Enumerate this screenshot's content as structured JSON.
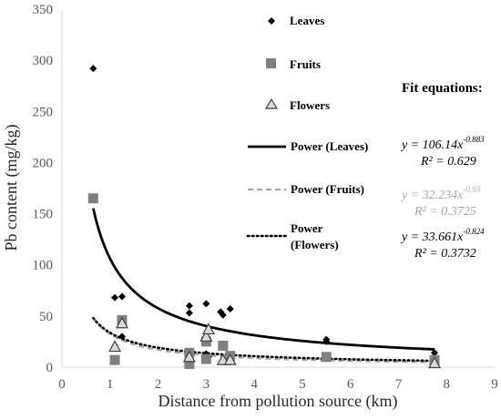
{
  "chart_data": {
    "type": "scatter",
    "xlabel": "Distance from pollution source (km)",
    "ylabel": "Pb content (mg/kg)",
    "xlim": [
      0,
      9
    ],
    "ylim": [
      0,
      350
    ],
    "x_ticks": [
      "0",
      "1",
      "2",
      "3",
      "4",
      "5",
      "6",
      "7",
      "8",
      "9"
    ],
    "y_ticks": [
      "0",
      "50",
      "100",
      "150",
      "200",
      "250",
      "300",
      "350"
    ],
    "grid": false,
    "legend_position": "right",
    "series": [
      {
        "name": "Leaves",
        "marker": "diamond",
        "color": "#000000",
        "points": [
          [
            0.65,
            292
          ],
          [
            1.1,
            68
          ],
          [
            1.25,
            69
          ],
          [
            1.25,
            30
          ],
          [
            2.65,
            60
          ],
          [
            2.65,
            53
          ],
          [
            3.0,
            62
          ],
          [
            3.0,
            13
          ],
          [
            3.05,
            10
          ],
          [
            3.3,
            54
          ],
          [
            3.35,
            51
          ],
          [
            3.5,
            57
          ],
          [
            5.5,
            27
          ],
          [
            5.5,
            25
          ],
          [
            7.75,
            14
          ]
        ]
      },
      {
        "name": "Fruits",
        "marker": "square",
        "color": "#808080",
        "points": [
          [
            0.65,
            165
          ],
          [
            1.1,
            7
          ],
          [
            1.25,
            46
          ],
          [
            2.65,
            3
          ],
          [
            2.65,
            14
          ],
          [
            3.0,
            8
          ],
          [
            3.0,
            25
          ],
          [
            3.35,
            21
          ],
          [
            3.5,
            11
          ],
          [
            5.5,
            10
          ],
          [
            7.75,
            7
          ]
        ]
      },
      {
        "name": "Flowers",
        "marker": "triangle",
        "color": "#595959",
        "points": [
          [
            1.1,
            20
          ],
          [
            1.25,
            43
          ],
          [
            2.65,
            10
          ],
          [
            3.0,
            30
          ],
          [
            3.05,
            37
          ],
          [
            3.35,
            7
          ],
          [
            3.5,
            7
          ],
          [
            7.75,
            4
          ]
        ]
      }
    ],
    "fits": [
      {
        "name": "Power (Leaves)",
        "style": "solid",
        "color": "#000000",
        "a": 106.14,
        "b": -0.883,
        "x_range": [
          0.65,
          7.75
        ]
      },
      {
        "name": "Power (Fruits)",
        "style": "dashed",
        "color": "#a6a6a6",
        "a": 32.234,
        "b": -0.93,
        "x_range": [
          0.65,
          7.75
        ]
      },
      {
        "name": "Power (Flowers)",
        "style": "dotted",
        "color": "#000000",
        "a": 33.661,
        "b": -0.824,
        "x_range": [
          0.65,
          7.75
        ]
      }
    ],
    "legend": {
      "leaves": "Leaves",
      "fruits": "Fruits",
      "flowers": "Flowers",
      "power_leaves": "Power (Leaves)",
      "power_fruits": "Power (Fruits)",
      "power_flowers_line1": "Power",
      "power_flowers_line2": "(Flowers)"
    },
    "annotations": {
      "fit_title": "Fit equations:",
      "leaves_eq_base": "y = 106.14x",
      "leaves_eq_exp": "-0.883",
      "leaves_r2": "R² = 0.629",
      "fruits_eq_base": "y = 32.234x",
      "fruits_eq_exp": "-0.93",
      "fruits_r2": "R² = 0.3725",
      "flowers_eq_base": "y = 33.661x",
      "flowers_eq_exp": "-0.824",
      "flowers_r2": "R² = 0.3732"
    }
  }
}
